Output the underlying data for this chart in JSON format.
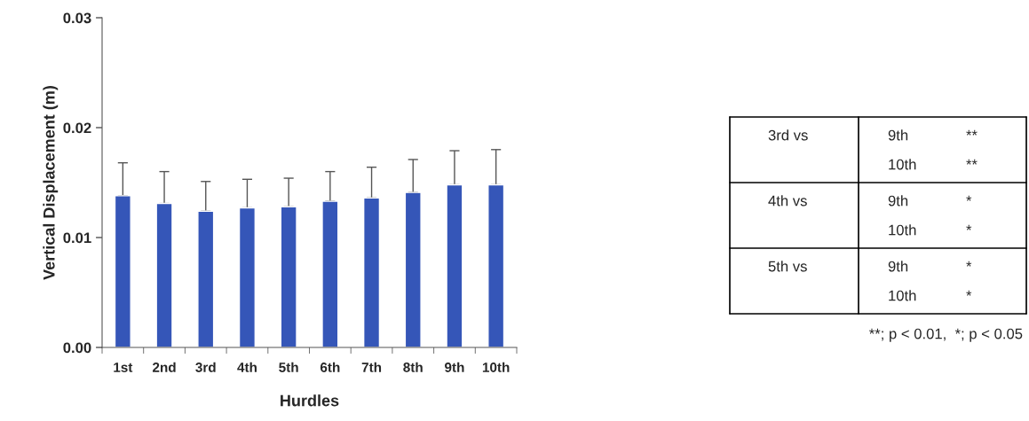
{
  "chart_data": {
    "type": "bar",
    "xlabel": "Hurdles",
    "ylabel": "Vertical Displacement (m)",
    "categories": [
      "1st",
      "2nd",
      "3rd",
      "4th",
      "5th",
      "6th",
      "7th",
      "8th",
      "9th",
      "10th"
    ],
    "series": [
      {
        "color": "#3556b8",
        "values": [
          0.0138,
          0.0131,
          0.0124,
          0.0127,
          0.0128,
          0.0133,
          0.0136,
          0.0141,
          0.0148,
          0.0148
        ],
        "errors": [
          [
            0.0138,
            0.0168
          ],
          [
            0.0131,
            0.016
          ],
          [
            0.0124,
            0.0151
          ],
          [
            0.0127,
            0.0153
          ],
          [
            0.0128,
            0.0154
          ],
          [
            0.0133,
            0.016
          ],
          [
            0.0136,
            0.0164
          ],
          [
            0.0141,
            0.0171
          ],
          [
            0.0148,
            0.0179
          ],
          [
            0.0148,
            0.018
          ]
        ]
      }
    ],
    "ylim": [
      0,
      0.03
    ],
    "yticks": [
      {
        "value": 0,
        "label": "0.00"
      },
      {
        "value": 0.01,
        "label": "0.01"
      },
      {
        "value": 0.02,
        "label": "0.02"
      },
      {
        "value": 0.03,
        "label": "0.03"
      }
    ],
    "grid": false,
    "legend": false,
    "annotations": [
      "3rd vs",
      "9th",
      "**",
      "10th",
      "**",
      "4th vs",
      "9th",
      "*",
      "10th",
      "*",
      "5th vs",
      "9th",
      "*",
      "10th",
      "*",
      "**; p < 0.01,  *; p < 0.05"
    ]
  }
}
